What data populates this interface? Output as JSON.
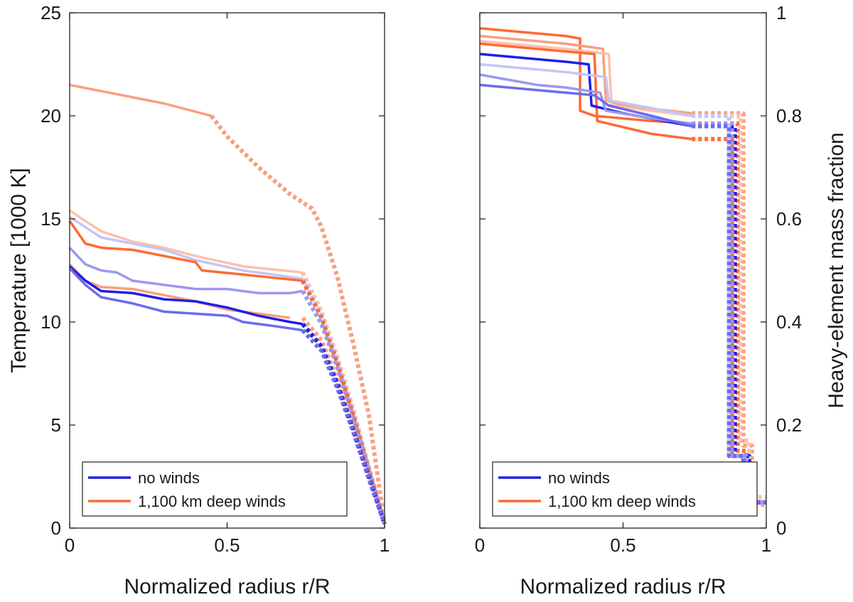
{
  "chart_data": [
    {
      "type": "line",
      "xlabel": "Normalized radius r/R",
      "ylabel": "Temperature [1000 K]",
      "xlim": [
        0,
        1
      ],
      "ylim": [
        0,
        25
      ],
      "xticks": [
        "0",
        "0.5",
        "1"
      ],
      "yticks": [
        "0",
        "5",
        "10",
        "15",
        "20",
        "25"
      ],
      "grid": false,
      "legend_placement": "bottom-left",
      "legend": [
        {
          "label": "no winds",
          "color": "#1f1fe6"
        },
        {
          "label": "1,100 km deep winds",
          "color": "#ff6a33"
        }
      ],
      "series": [
        {
          "color": "#f9a07f",
          "solid": [
            [
              0,
              21.5
            ],
            [
              0.1,
              21.2
            ],
            [
              0.2,
              20.9
            ],
            [
              0.3,
              20.6
            ],
            [
              0.4,
              20.2
            ],
            [
              0.45,
              20.0
            ]
          ],
          "dotted": [
            [
              0.45,
              20.0
            ],
            [
              0.5,
              19.0
            ],
            [
              0.6,
              17.5
            ],
            [
              0.7,
              16.2
            ],
            [
              0.77,
              15.5
            ],
            [
              0.8,
              14.6
            ],
            [
              0.85,
              12.2
            ],
            [
              0.9,
              9.0
            ],
            [
              0.95,
              5.5
            ],
            [
              1.0,
              0.2
            ]
          ]
        },
        {
          "color": "#fbc1ad",
          "solid": [
            [
              0,
              15.4
            ],
            [
              0.1,
              14.4
            ],
            [
              0.2,
              13.9
            ],
            [
              0.3,
              13.6
            ],
            [
              0.4,
              13.2
            ],
            [
              0.55,
              12.7
            ],
            [
              0.74,
              12.4
            ]
          ],
          "dotted": [
            [
              0.74,
              12.4
            ],
            [
              0.8,
              10.5
            ],
            [
              0.85,
              8.3
            ],
            [
              0.9,
              5.8
            ],
            [
              0.95,
              3.0
            ],
            [
              1.0,
              0.2
            ]
          ]
        },
        {
          "color": "#c5c5f7",
          "solid": [
            [
              0,
              15.1
            ],
            [
              0.1,
              14.1
            ],
            [
              0.2,
              13.8
            ],
            [
              0.3,
              13.5
            ],
            [
              0.4,
              13.0
            ],
            [
              0.55,
              12.5
            ],
            [
              0.74,
              12.1
            ]
          ],
          "dotted": [
            [
              0.74,
              12.1
            ],
            [
              0.8,
              10.3
            ],
            [
              0.85,
              8.1
            ],
            [
              0.9,
              5.6
            ],
            [
              0.95,
              2.9
            ],
            [
              1.0,
              0.2
            ]
          ]
        },
        {
          "color": "#ff6a33",
          "solid": [
            [
              0,
              14.9
            ],
            [
              0.05,
              13.8
            ],
            [
              0.1,
              13.6
            ],
            [
              0.2,
              13.5
            ],
            [
              0.3,
              13.2
            ],
            [
              0.4,
              12.9
            ],
            [
              0.42,
              12.5
            ],
            [
              0.55,
              12.3
            ],
            [
              0.74,
              12.0
            ]
          ],
          "dotted": [
            [
              0.74,
              12.0
            ],
            [
              0.8,
              10.2
            ],
            [
              0.85,
              8.0
            ],
            [
              0.9,
              5.5
            ],
            [
              0.95,
              2.8
            ],
            [
              1.0,
              0.2
            ]
          ]
        },
        {
          "color": "#9999f0",
          "solid": [
            [
              0,
              13.6
            ],
            [
              0.05,
              12.8
            ],
            [
              0.1,
              12.5
            ],
            [
              0.15,
              12.4
            ],
            [
              0.2,
              12.0
            ],
            [
              0.3,
              11.8
            ],
            [
              0.4,
              11.6
            ],
            [
              0.5,
              11.6
            ],
            [
              0.6,
              11.4
            ],
            [
              0.7,
              11.4
            ],
            [
              0.74,
              11.5
            ]
          ],
          "dotted": [
            [
              0.74,
              11.5
            ],
            [
              0.8,
              9.9
            ],
            [
              0.85,
              7.8
            ],
            [
              0.9,
              5.4
            ],
            [
              0.95,
              2.8
            ],
            [
              1.0,
              0.2
            ]
          ]
        },
        {
          "color": "#f9a07f",
          "solid": [
            [
              0,
              12.8
            ],
            [
              0.05,
              12.0
            ],
            [
              0.1,
              11.7
            ],
            [
              0.2,
              11.6
            ],
            [
              0.3,
              11.3
            ],
            [
              0.4,
              11.0
            ],
            [
              0.5,
              10.6
            ],
            [
              0.6,
              10.4
            ],
            [
              0.7,
              10.2
            ]
          ],
          "dotted": [
            [
              0.74,
              10.2
            ],
            [
              0.8,
              9.1
            ],
            [
              0.85,
              7.2
            ],
            [
              0.9,
              5.0
            ],
            [
              0.95,
              2.6
            ],
            [
              1.0,
              0.2
            ]
          ]
        },
        {
          "color": "#1f1fe6",
          "solid": [
            [
              0,
              12.7
            ],
            [
              0.05,
              12.0
            ],
            [
              0.1,
              11.5
            ],
            [
              0.2,
              11.4
            ],
            [
              0.3,
              11.1
            ],
            [
              0.4,
              11.0
            ],
            [
              0.5,
              10.7
            ],
            [
              0.6,
              10.3
            ],
            [
              0.7,
              10.0
            ],
            [
              0.74,
              9.9
            ]
          ],
          "dotted": [
            [
              0.74,
              9.9
            ],
            [
              0.8,
              8.8
            ],
            [
              0.85,
              7.0
            ],
            [
              0.9,
              4.8
            ],
            [
              0.95,
              2.5
            ],
            [
              1.0,
              0.2
            ]
          ]
        },
        {
          "color": "#6b6bee",
          "solid": [
            [
              0,
              12.6
            ],
            [
              0.05,
              11.8
            ],
            [
              0.1,
              11.2
            ],
            [
              0.2,
              10.9
            ],
            [
              0.3,
              10.5
            ],
            [
              0.4,
              10.4
            ],
            [
              0.5,
              10.3
            ],
            [
              0.55,
              10.0
            ],
            [
              0.65,
              9.8
            ],
            [
              0.74,
              9.6
            ]
          ],
          "dotted": [
            [
              0.74,
              9.6
            ],
            [
              0.8,
              8.6
            ],
            [
              0.85,
              6.8
            ],
            [
              0.9,
              4.7
            ],
            [
              0.95,
              2.4
            ],
            [
              1.0,
              0.2
            ]
          ]
        }
      ]
    },
    {
      "type": "line",
      "xlabel": "Normalized radius r/R",
      "ylabel": "Heavy-element mass fraction",
      "xlim": [
        0,
        1
      ],
      "ylim": [
        0,
        1
      ],
      "xticks": [
        "0",
        "0.5",
        "1"
      ],
      "yticks": [
        "0",
        "0.2",
        "0.4",
        "0.6",
        "0.8",
        "1"
      ],
      "grid": false,
      "legend_placement": "bottom-left",
      "legend": [
        {
          "label": "no winds",
          "color": "#1f1fe6"
        },
        {
          "label": "1,100 km deep winds",
          "color": "#ff6a33"
        }
      ],
      "series": [
        {
          "color": "#ff6a33",
          "solid": [
            [
              0,
              0.97
            ],
            [
              0.1,
              0.965
            ],
            [
              0.2,
              0.96
            ],
            [
              0.3,
              0.955
            ],
            [
              0.35,
              0.95
            ],
            [
              0.35,
              0.81
            ],
            [
              0.4,
              0.8
            ],
            [
              0.5,
              0.795
            ],
            [
              0.6,
              0.79
            ],
            [
              0.74,
              0.785
            ]
          ],
          "dotted": [
            [
              0.74,
              0.785
            ],
            [
              0.9,
              0.785
            ],
            [
              0.9,
              0.15
            ],
            [
              0.93,
              0.15
            ],
            [
              0.93,
              0.05
            ],
            [
              1.0,
              0.05
            ]
          ]
        },
        {
          "color": "#f9a07f",
          "solid": [
            [
              0,
              0.955
            ],
            [
              0.1,
              0.95
            ],
            [
              0.2,
              0.945
            ],
            [
              0.3,
              0.94
            ],
            [
              0.43,
              0.93
            ],
            [
              0.44,
              0.83
            ],
            [
              0.5,
              0.82
            ],
            [
              0.74,
              0.805
            ]
          ],
          "dotted": [
            [
              0.74,
              0.805
            ],
            [
              0.92,
              0.805
            ],
            [
              0.92,
              0.16
            ],
            [
              0.95,
              0.16
            ],
            [
              0.95,
              0.045
            ],
            [
              1.0,
              0.045
            ]
          ]
        },
        {
          "color": "#fbc1ad",
          "solid": [
            [
              0,
              0.945
            ],
            [
              0.1,
              0.94
            ],
            [
              0.2,
              0.935
            ],
            [
              0.3,
              0.93
            ],
            [
              0.45,
              0.92
            ],
            [
              0.46,
              0.82
            ],
            [
              0.6,
              0.81
            ],
            [
              0.74,
              0.8
            ]
          ],
          "dotted": [
            [
              0.74,
              0.8
            ],
            [
              0.91,
              0.8
            ],
            [
              0.91,
              0.17
            ],
            [
              0.94,
              0.17
            ],
            [
              0.94,
              0.06
            ],
            [
              1.0,
              0.06
            ]
          ]
        },
        {
          "color": "#ff6a33",
          "solid": [
            [
              0,
              0.94
            ],
            [
              0.1,
              0.935
            ],
            [
              0.2,
              0.93
            ],
            [
              0.3,
              0.925
            ],
            [
              0.4,
              0.92
            ],
            [
              0.41,
              0.79
            ],
            [
              0.6,
              0.765
            ],
            [
              0.74,
              0.755
            ]
          ],
          "dotted": [
            [
              0.74,
              0.755
            ],
            [
              0.88,
              0.755
            ],
            [
              0.88,
              0.14
            ],
            [
              0.92,
              0.14
            ],
            [
              0.92,
              0.05
            ],
            [
              1.0,
              0.05
            ]
          ]
        },
        {
          "color": "#1f1fe6",
          "solid": [
            [
              0,
              0.92
            ],
            [
              0.1,
              0.915
            ],
            [
              0.2,
              0.91
            ],
            [
              0.3,
              0.905
            ],
            [
              0.38,
              0.9
            ],
            [
              0.39,
              0.82
            ],
            [
              0.5,
              0.805
            ],
            [
              0.74,
              0.78
            ]
          ],
          "dotted": [
            [
              0.74,
              0.78
            ],
            [
              0.89,
              0.78
            ],
            [
              0.89,
              0.14
            ],
            [
              0.94,
              0.14
            ],
            [
              0.94,
              0.05
            ],
            [
              1.0,
              0.05
            ]
          ]
        },
        {
          "color": "#c5c5f7",
          "solid": [
            [
              0,
              0.9
            ],
            [
              0.1,
              0.895
            ],
            [
              0.2,
              0.89
            ],
            [
              0.3,
              0.885
            ],
            [
              0.44,
              0.875
            ],
            [
              0.45,
              0.83
            ],
            [
              0.6,
              0.815
            ],
            [
              0.74,
              0.8
            ]
          ],
          "dotted": [
            [
              0.74,
              0.8
            ],
            [
              0.87,
              0.8
            ],
            [
              0.87,
              0.14
            ],
            [
              0.93,
              0.14
            ],
            [
              0.93,
              0.05
            ],
            [
              1.0,
              0.05
            ]
          ]
        },
        {
          "color": "#9999f0",
          "solid": [
            [
              0,
              0.88
            ],
            [
              0.1,
              0.87
            ],
            [
              0.2,
              0.86
            ],
            [
              0.3,
              0.855
            ],
            [
              0.42,
              0.845
            ],
            [
              0.44,
              0.81
            ],
            [
              0.6,
              0.795
            ],
            [
              0.74,
              0.785
            ]
          ],
          "dotted": [
            [
              0.74,
              0.785
            ],
            [
              0.88,
              0.785
            ],
            [
              0.88,
              0.14
            ],
            [
              0.93,
              0.14
            ],
            [
              0.93,
              0.05
            ],
            [
              1.0,
              0.05
            ]
          ]
        },
        {
          "color": "#6b6bee",
          "solid": [
            [
              0,
              0.86
            ],
            [
              0.1,
              0.855
            ],
            [
              0.2,
              0.85
            ],
            [
              0.3,
              0.845
            ],
            [
              0.4,
              0.84
            ],
            [
              0.45,
              0.82
            ],
            [
              0.6,
              0.8
            ],
            [
              0.74,
              0.78
            ]
          ],
          "dotted": [
            [
              0.74,
              0.78
            ],
            [
              0.87,
              0.78
            ],
            [
              0.87,
              0.14
            ],
            [
              0.92,
              0.14
            ],
            [
              0.92,
              0.05
            ],
            [
              1.0,
              0.05
            ]
          ]
        }
      ]
    }
  ]
}
